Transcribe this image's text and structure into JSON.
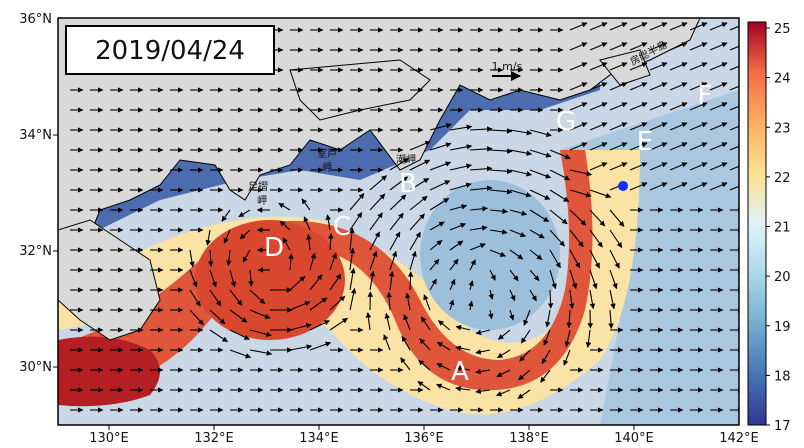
{
  "date_label": "2019/04/24",
  "velocity_scale_label": "1 m/s",
  "region_letters": [
    "A",
    "B",
    "C",
    "D",
    "E",
    "F",
    "G"
  ],
  "place_names": [
    "室戸",
    "岬",
    "潮岬",
    "足摺",
    "岬",
    "房総半島"
  ],
  "x_ticks": [
    "130°E",
    "132°E",
    "134°E",
    "136°E",
    "138°E",
    "140°E",
    "142°E"
  ],
  "y_ticks": [
    "30°N",
    "32°N",
    "34°N",
    "36°N"
  ],
  "colorbar": {
    "ticks": [
      "17",
      "18",
      "19",
      "20",
      "21",
      "22",
      "23",
      "24",
      "25"
    ],
    "min": 17,
    "max": 25
  },
  "map_extent": {
    "lon": [
      129,
      142
    ],
    "lat": [
      29,
      36
    ]
  },
  "colors": {
    "land": "#d9d9d9",
    "marker": "#1030ff"
  }
}
